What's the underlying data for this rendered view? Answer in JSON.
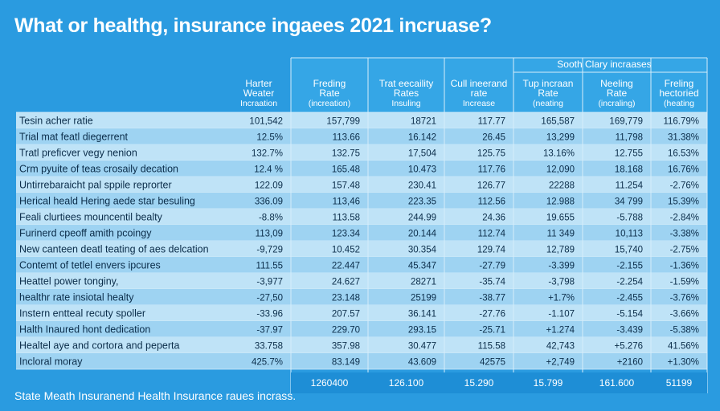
{
  "title": "What or healthg, insurance ingaees 2021 incruase?",
  "footnote": "State Meath Insuranend Health Insurance raues incrass.",
  "chart_data": {
    "type": "table",
    "group_header": "Sooth Clary incraases",
    "columns": [
      [
        "Harter",
        "Weater",
        "Incraation"
      ],
      [
        "Freding",
        "Rate",
        "(increation)"
      ],
      [
        "Trat eecaility",
        "Rates",
        "Insuling"
      ],
      [
        "Cull ineerand",
        "rate",
        "Increase"
      ],
      [
        "Tup incraan",
        "Rate",
        "(neating"
      ],
      [
        "Neeling",
        "Rate",
        "(incraling)"
      ],
      [
        "Freling",
        "hectoried",
        "(heating"
      ]
    ],
    "rows": [
      {
        "label": "Tesin acher ratie",
        "values": [
          "101,542",
          "157,799",
          "18721",
          "117.77",
          "165,587",
          "169,779",
          "116.79%"
        ]
      },
      {
        "label": "Trial mat featl diegerrent",
        "values": [
          "12.5%",
          "113.66",
          "16.142",
          "26.45",
          "13,299",
          "11,798",
          "31.38%"
        ]
      },
      {
        "label": "Tratl preficver vegy nenion",
        "values": [
          "132.7%",
          "132.75",
          "17,504",
          "125.75",
          "13.16%",
          "12.755",
          "16.53%"
        ]
      },
      {
        "label": "Crm pyuite of teas crosaily decation",
        "values": [
          "12.4 %",
          "165.48",
          "10.473",
          "117.76",
          "12,090",
          "18.168",
          "16.76%"
        ]
      },
      {
        "label": "Untirrebaraicht pal sppile reprorter",
        "values": [
          "122.09",
          "157.48",
          "230.41",
          "126.77",
          "22288",
          "11.254",
          "-2.76%"
        ]
      },
      {
        "label": "Herical heald Hering aede star besuling",
        "values": [
          "336.09",
          "113,46",
          "223.35",
          "112.56",
          "12.988",
          "34 799",
          "15.39%"
        ]
      },
      {
        "label": "Feali clurtiees mouncentil bealty",
        "values": [
          "-8.8%",
          "113.58",
          "244.99",
          "24.36",
          "19.655",
          "-5.788",
          "-2.84%"
        ]
      },
      {
        "label": "Furinerd cpeoff amith pcoingy",
        "values": [
          "113,09",
          "123.34",
          "20.144",
          "112.74",
          "11 349",
          "10,113",
          "-3.38%"
        ]
      },
      {
        "label": "New canteen deatl teating of aes delcation",
        "values": [
          "-9,729",
          "10.452",
          "30.354",
          "129.74",
          "12,789",
          "15,740",
          "-2.75%"
        ]
      },
      {
        "label": "Contemt of tetlel envers ipcures",
        "values": [
          "111.55",
          "22.447",
          "45.347",
          "-27.79",
          "-3.399",
          "-2.155",
          "-1.36%"
        ]
      },
      {
        "label": "Heattel power tonginy,",
        "values": [
          "-3,977",
          "24.627",
          "28271",
          "-35.74",
          "-3,798",
          "-2.254",
          "-1.59%"
        ]
      },
      {
        "label": "healthr rate insiotal healty",
        "values": [
          "-27,50",
          "23.148",
          "25199",
          "-38.77",
          "+1.7%",
          "-2.455",
          "-3.76%"
        ]
      },
      {
        "label": "Instern entteal recuty spoller",
        "values": [
          "-33.96",
          "207.57",
          "36.141",
          "-27.76",
          "-1.107",
          "-5.154",
          "-3.66%"
        ]
      },
      {
        "label": "Halth Inaured hont dedication",
        "values": [
          "-37.97",
          "229.70",
          "293.15",
          "-25.71",
          "+1.274",
          "-3.439",
          "-5.38%"
        ]
      },
      {
        "label": "Healtel aye and cortora and peperta",
        "values": [
          "33.758",
          "357.98",
          "30.477",
          "115.58",
          "42,743",
          "+5.276",
          "41.56%"
        ]
      },
      {
        "label": "Incloral moray",
        "values": [
          "425.7%",
          "83.149",
          "43.609",
          "42575",
          "+2,749",
          "+2160",
          "+1.30%"
        ]
      }
    ],
    "totals": [
      "1260400",
      "126.100",
      "15.290",
      "15.799",
      "161.600",
      "51199"
    ],
    "colors": {
      "background": "#2a9be0",
      "row_even": "#bfe3f7",
      "row_odd": "#9ed3f2",
      "total_row": "#1e8ed6",
      "text_dark": "#0b2d4a",
      "text_light": "#ffffff",
      "grid": "#d6eefb"
    }
  }
}
